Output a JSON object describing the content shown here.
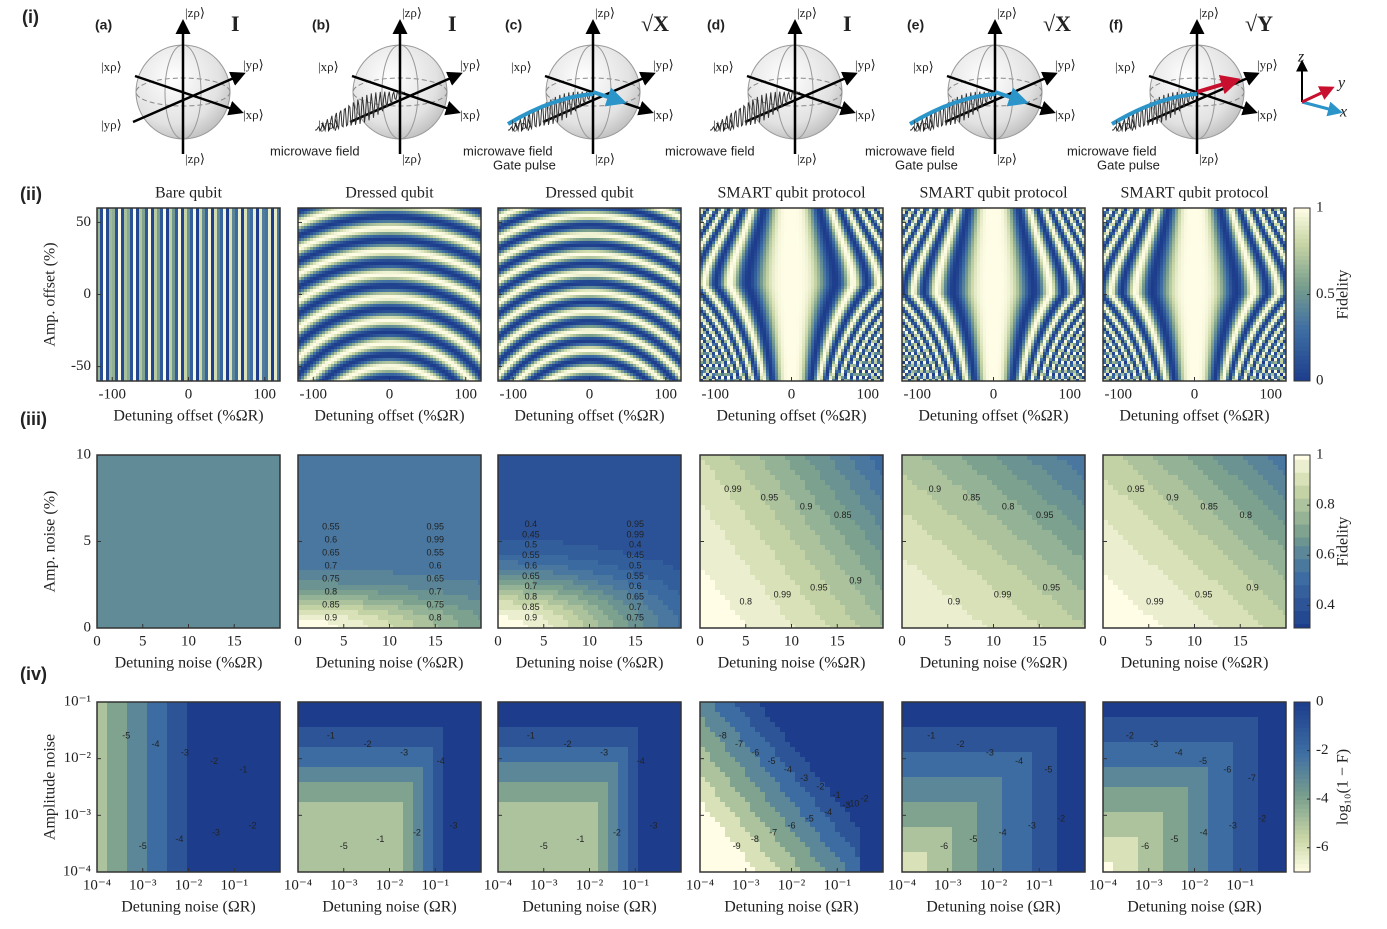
{
  "row_labels": [
    "(i)",
    "(ii)",
    "(iii)",
    "(iv)"
  ],
  "bloch_panels": [
    {
      "label": "(a)",
      "gate": "I",
      "kets": [
        "|zρ⟩",
        "|xρ⟩",
        "|yρ⟩",
        "|xρ⟩",
        "|yρ⟩",
        "|zρ⟩"
      ]
    },
    {
      "label": "(b)",
      "gate": "I",
      "kets": [
        "|zρ⟩",
        "|xρ⟩",
        "|yρ⟩",
        "|xρ⟩",
        "|yρ⟩",
        "|zρ⟩"
      ],
      "field_label": "microwave field"
    },
    {
      "label": "(c)",
      "gate": "√X",
      "kets": [
        "|zρ⟩",
        "|xρ⟩",
        "|yρ⟩",
        "|xρ⟩",
        "|yρ⟩",
        "|zρ⟩"
      ],
      "field_label": "microwave field",
      "pulse_label": "Gate pulse"
    },
    {
      "label": "(d)",
      "gate": "I",
      "kets": [
        "|zρ⟩",
        "|xρ⟩",
        "|yρ⟩",
        "|xρ⟩",
        "|yρ⟩",
        "|zρ⟩"
      ],
      "field_label": "microwave field"
    },
    {
      "label": "(e)",
      "gate": "√X",
      "kets": [
        "|zρ⟩",
        "|xρ⟩",
        "|yρ⟩",
        "|xρ⟩",
        "|yρ⟩",
        "|zρ⟩"
      ],
      "field_label": "microwave field",
      "pulse_label": "Gate pulse"
    },
    {
      "label": "(f)",
      "gate": "√Y",
      "kets": [
        "|zρ⟩",
        "|xρ⟩",
        "|yρ⟩",
        "|xρ⟩",
        "|yρ⟩",
        "|zρ⟩"
      ],
      "field_label": "microwave field",
      "pulse_label": "Gate pulse"
    }
  ],
  "frame_axes": [
    "z",
    "y",
    "x"
  ],
  "fidelity_maps": {
    "titles": [
      "Bare qubit",
      "Dressed qubit",
      "Dressed qubit",
      "SMART qubit protocol",
      "SMART qubit protocol",
      "SMART qubit protocol"
    ],
    "xlabel": "Detuning offset (%ΩR)",
    "ylabel": "Amp. offset (%)",
    "xlim": [
      -120,
      120
    ],
    "ylim": [
      -60,
      60
    ],
    "xticks": [
      -100,
      0,
      100
    ],
    "yticks": [
      50,
      0,
      -50
    ],
    "colorbar": {
      "label": "Fidelity",
      "lim": [
        0,
        1
      ],
      "ticks": [
        1,
        0.5,
        0
      ]
    }
  },
  "noise_maps": {
    "xlabel": "Detuning noise (%ΩR)",
    "ylabel": "Amp. noise (%)",
    "xlim": [
      0,
      20
    ],
    "ylim": [
      0,
      10
    ],
    "xticks": [
      0,
      5,
      10,
      15
    ],
    "yticks": [
      10,
      5,
      0
    ],
    "colorbar": {
      "label": "Fidelity",
      "lim": [
        0.31,
        1
      ],
      "ticks": [
        1,
        0.8,
        0.6,
        0.4
      ]
    },
    "contour_labels": [
      [],
      [
        0.55,
        0.6,
        0.65,
        0.7,
        0.75,
        0.8,
        0.85,
        0.9,
        0.95,
        0.99,
        0.55,
        0.6,
        0.65,
        0.7,
        0.75,
        0.8
      ],
      [
        0.4,
        0.45,
        0.5,
        0.55,
        0.6,
        0.65,
        0.7,
        0.8,
        0.85,
        0.9,
        0.95,
        0.99,
        0.4,
        0.45,
        0.5,
        0.55,
        0.6,
        0.65,
        0.7,
        0.75
      ],
      [
        0.99,
        0.95,
        0.9,
        0.85,
        0.8,
        0.99,
        0.95,
        0.9
      ],
      [
        0.9,
        0.85,
        0.8,
        0.95,
        0.9,
        0.99,
        0.95
      ],
      [
        0.95,
        0.9,
        0.85,
        0.8,
        0.99,
        0.95,
        0.9
      ]
    ]
  },
  "log_maps": {
    "xlabel": "Detuning noise (ΩR)",
    "ylabel": "Amplitude noise",
    "xlim": [
      0.0001,
      1
    ],
    "ylim": [
      0.0001,
      0.1
    ],
    "xticks": [
      {
        "value": 0.0001,
        "label": "10⁻⁴"
      },
      {
        "value": 0.001,
        "label": "10⁻³"
      },
      {
        "value": 0.01,
        "label": "10⁻²"
      },
      {
        "value": 0.1,
        "label": "10⁻¹"
      }
    ],
    "yticks": [
      {
        "value": 0.1,
        "label": "10⁻¹"
      },
      {
        "value": 0.01,
        "label": "10⁻²"
      },
      {
        "value": 0.001,
        "label": "10⁻³"
      },
      {
        "value": 0.0001,
        "label": "10⁻⁴"
      }
    ],
    "colorbar": {
      "label": "log₁₀(1 − F)",
      "lim": [
        -7,
        0
      ],
      "ticks": [
        0,
        -2,
        -4,
        -6
      ]
    },
    "contour_labels": [
      [
        -5,
        -4,
        -3,
        -2,
        -1,
        -5,
        -4,
        -3,
        -2
      ],
      [
        -1,
        -2,
        -3,
        -4,
        -5,
        -1,
        -2,
        -3
      ],
      [
        -1,
        -2,
        -3,
        -4,
        -5,
        -1,
        -2,
        -3
      ],
      [
        -8,
        -7,
        -6,
        -5,
        -4,
        -3,
        -2,
        -1,
        -10,
        -9,
        -8,
        -7,
        -6,
        -5,
        -4,
        -3,
        -2
      ],
      [
        -1,
        -2,
        -3,
        -4,
        -5,
        -6,
        -5,
        -4,
        -3,
        -2
      ],
      [
        -2,
        -3,
        -4,
        -5,
        -6,
        -7,
        -6,
        -5,
        -4,
        -3,
        -2
      ]
    ]
  }
}
